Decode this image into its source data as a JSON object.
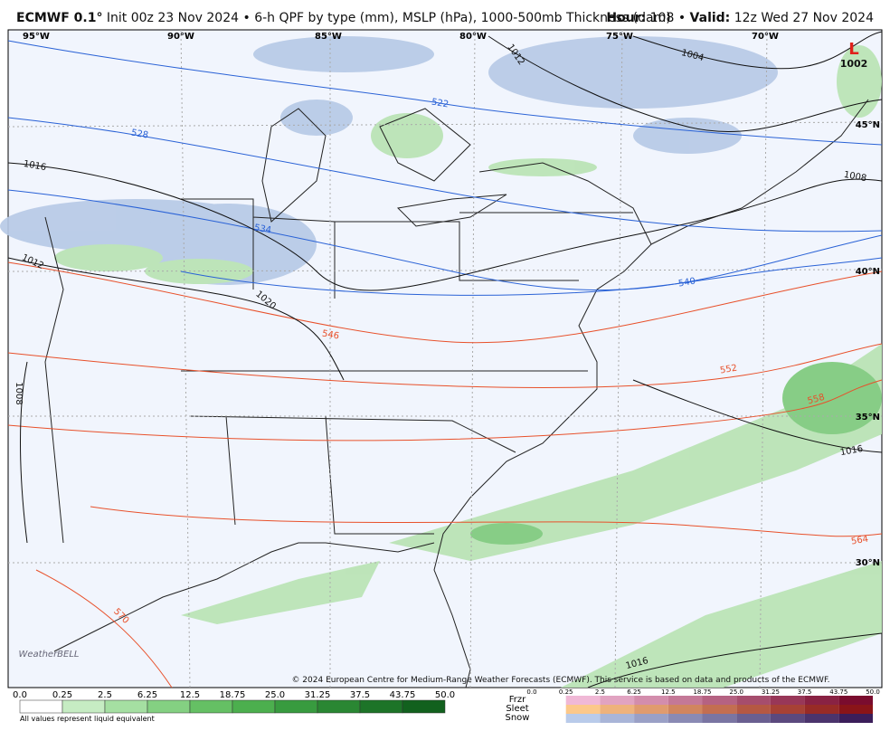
{
  "header": {
    "model": "ECMWF 0.1°",
    "init": "Init 00z 23 Nov 2024",
    "separator": "•",
    "product": "6-h QPF by type (mm), MSLP (hPa), 1000-500mb Thickness (dam)",
    "hour_label": "Hour:",
    "hour": "108",
    "valid_label": "Valid:",
    "valid": "12z Wed 27 Nov 2024"
  },
  "map": {
    "longitudes": [
      "95°W",
      "90°W",
      "85°W",
      "80°W",
      "75°W",
      "70°W"
    ],
    "latitudes": [
      "45°N",
      "40°N",
      "35°N",
      "30°N"
    ],
    "isobars": [
      "1012",
      "1004",
      "1016",
      "1008",
      "1012",
      "1020",
      "1008",
      "1016",
      "1016"
    ],
    "thickness": [
      "522",
      "528",
      "534",
      "540",
      "546",
      "552",
      "558",
      "564",
      "570"
    ],
    "low": {
      "symbol": "L",
      "pressure": "1002"
    },
    "logo": "WeatherBELL",
    "copyright": "© 2024 European Centre for Medium-Range Weather Forecasts (ECMWF). This service is based on data and products of the ECMWF."
  },
  "legend": {
    "rain_ticks": [
      "0.0",
      "0.25",
      "2.5",
      "6.25",
      "12.5",
      "18.75",
      "25.0",
      "31.25",
      "37.5",
      "43.75",
      "50.0"
    ],
    "note": "All values represent liquid equivalent",
    "types": [
      "Frzr",
      "Sleet",
      "Snow"
    ],
    "type_ticks": [
      "0.0",
      "0.25",
      "2.5",
      "6.25",
      "12.5",
      "18.75",
      "25.0",
      "31.25",
      "37.5",
      "43.75",
      "50.0"
    ]
  }
}
